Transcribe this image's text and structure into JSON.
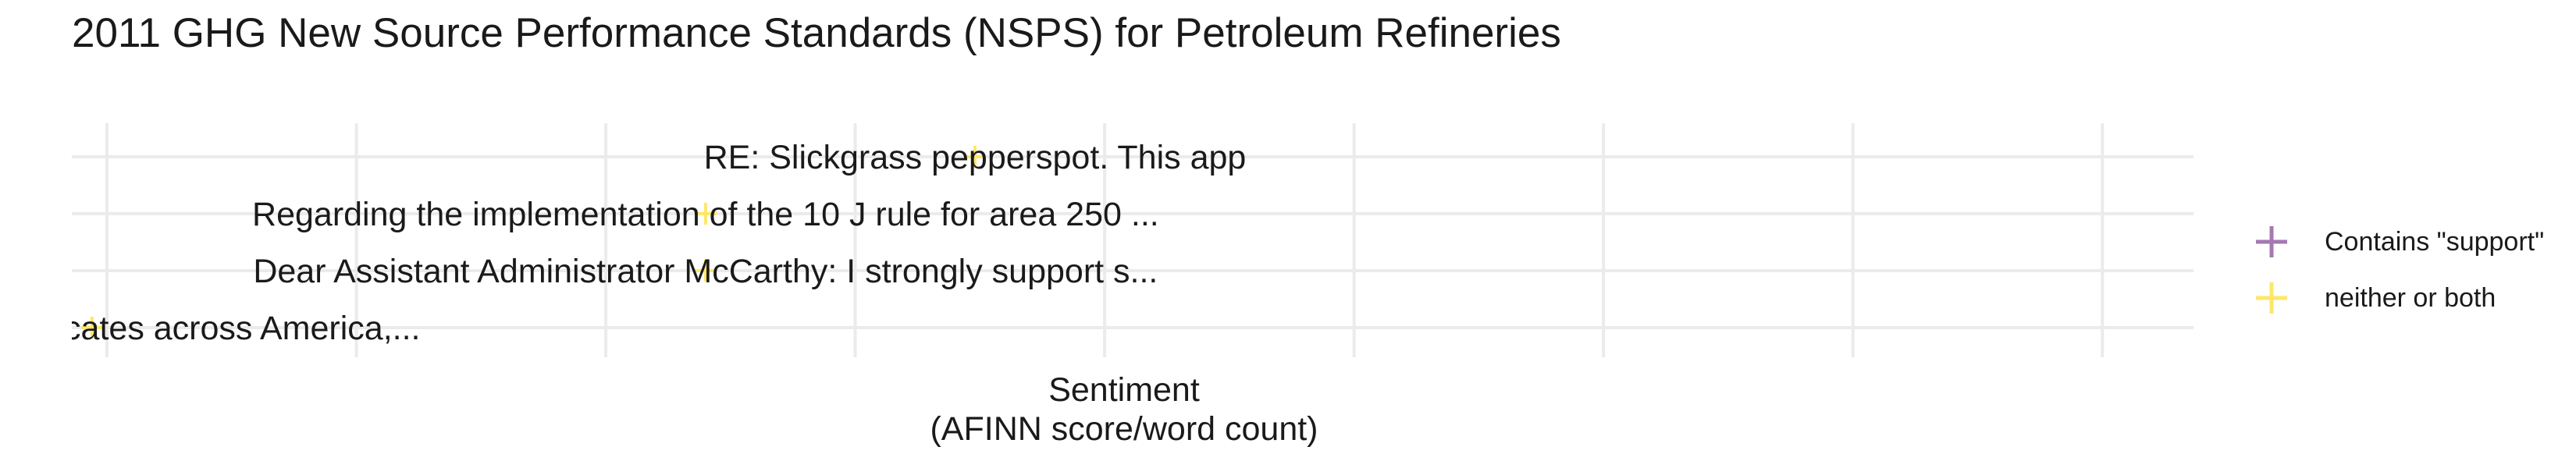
{
  "chart_data": {
    "type": "scatter",
    "title": "2011 GHG New Source Performance Standards (NSPS) for Petroleum Refineries",
    "xlabel_line1": "Sentiment",
    "xlabel_line2": "(AFINN score/word count)",
    "ylabel": "",
    "grid": true,
    "legend_position": "right",
    "legend": [
      {
        "name": "Contains \"support\"",
        "color": "#A479B0"
      },
      {
        "name": "neither or both",
        "color": "#FDE76B"
      }
    ],
    "points": [
      {
        "x": 0.94,
        "y": 4,
        "label": "RE:  Slickgrass pepperspot.  This app",
        "group": "neither or both"
      },
      {
        "x": 0.4,
        "y": 3,
        "label": "Regarding the implementation of the 10 J rule for area 250 ...",
        "group": "neither or both"
      },
      {
        "x": 0.4,
        "y": 2,
        "label": "Dear Assistant Administrator McCarthy:  I strongly support s...",
        "group": "neither or both"
      },
      {
        "x": -0.83,
        "y": 1,
        "label": "Thousand wolf advocates across America,...",
        "group": "neither or both"
      }
    ]
  }
}
